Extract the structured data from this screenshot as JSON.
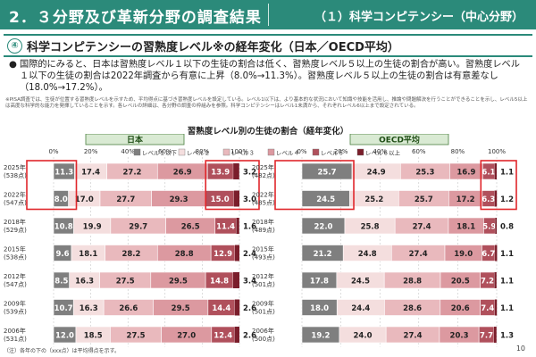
{
  "header": {
    "title": "2．３分野及び革新分野の調査結果",
    "subtitle": "（１）科学コンピテンシー（中心分野）"
  },
  "section": {
    "number": "④",
    "title": "科学コンピテンシーの習熟度レベル※の経年変化（日本／OECD平均）"
  },
  "bullet": {
    "mark": "●",
    "text": "国際的にみると、日本は習熟度レベル１以下の生徒の割合は低く、習熟度レベル５以上の生徒の割合が高い。習熟度レベル１以下の生徒の割合は2022年調査から有意に上昇（8.0%→11.3%）。習熟度レベル５以上の生徒の割合は有意差なし（18.0%→17.2%）。"
  },
  "note": "※PISA調査では、生徒が位置する習熟度レベルを示すため、平均得点に基づき習熟度レベルを設定している。レベル1以下は、より基本的な状況において知識や技能を活用し、推論や問題解決を行うことができることを示し、レベル5以上は高度な科学的な能力を発揮していることを示す。各レベルの詳細は、各分野の調査の枠組みを参照。科学コンピテンシーはレベル1未満から、それぞれレベル6以上まで設定されている。",
  "footnote": "（注）各年の下の（xxx点）は平均得点を示す。",
  "page_number": "10",
  "colors": {
    "header_bg": "#2b8a7a",
    "highlight_box": "#e0262b",
    "level_colors": [
      "#7f7f7f",
      "#f4dede",
      "#e9b9bd",
      "#dc99a0",
      "#b0505c",
      "#7a1e2b"
    ]
  },
  "chart_data": [
    {
      "type": "bar",
      "stacked": true,
      "orientation": "horizontal",
      "title": "習熟度レベル別の生徒の割合（経年変化）",
      "panel": "日本",
      "xlim": [
        0,
        100
      ],
      "xticks": [
        "0%",
        "20%",
        "40%",
        "60%",
        "80%",
        "100%"
      ],
      "categories": [
        {
          "year": "2025年",
          "score": "(538点)"
        },
        {
          "year": "2022年",
          "score": "(547点)"
        },
        {
          "year": "2018年",
          "score": "(529点)"
        },
        {
          "year": "2015年",
          "score": "(538点)"
        },
        {
          "year": "2012年",
          "score": "(547点)"
        },
        {
          "year": "2009年",
          "score": "(539点)"
        },
        {
          "year": "2006年",
          "score": "(531点)"
        }
      ],
      "series": [
        {
          "name": "レベル１以下",
          "values": [
            11.3,
            8.0,
            10.8,
            9.6,
            8.5,
            10.7,
            12.0
          ]
        },
        {
          "name": "レベル２",
          "values": [
            17.4,
            17.0,
            19.9,
            18.1,
            16.3,
            16.3,
            18.5
          ]
        },
        {
          "name": "レベル３",
          "values": [
            27.2,
            27.7,
            29.7,
            28.2,
            27.5,
            26.6,
            27.5
          ]
        },
        {
          "name": "レベル４",
          "values": [
            26.9,
            29.3,
            26.5,
            28.8,
            29.5,
            29.5,
            27.0
          ]
        },
        {
          "name": "レベル５",
          "values": [
            13.9,
            15.0,
            11.4,
            12.9,
            14.8,
            14.4,
            12.4
          ]
        },
        {
          "name": "レベル６以上",
          "values": [
            3.2,
            3.0,
            1.6,
            2.4,
            3.4,
            2.6,
            2.6
          ]
        }
      ],
      "highlight": {
        "level1_rows": [
          0,
          1
        ],
        "level5_rows": [
          0,
          1
        ]
      }
    },
    {
      "type": "bar",
      "stacked": true,
      "orientation": "horizontal",
      "panel": "OECD平均",
      "xlim": [
        0,
        100
      ],
      "xticks": [
        "0%",
        "20%",
        "40%",
        "60%",
        "80%",
        "100%"
      ],
      "categories": [
        {
          "year": "2025年",
          "score": "(482点)"
        },
        {
          "year": "2022年",
          "score": "(485点)"
        },
        {
          "year": "2018年",
          "score": "(489点)"
        },
        {
          "year": "2015年",
          "score": "(493点)"
        },
        {
          "year": "2012年",
          "score": "(501点)"
        },
        {
          "year": "2009年",
          "score": "(501点)"
        },
        {
          "year": "2006年",
          "score": "(500点)"
        }
      ],
      "series": [
        {
          "name": "レベル１以下",
          "values": [
            25.7,
            24.5,
            22.0,
            21.2,
            17.8,
            18.0,
            19.2
          ]
        },
        {
          "name": "レベル２",
          "values": [
            24.9,
            25.2,
            25.8,
            24.8,
            24.5,
            24.4,
            24.0
          ]
        },
        {
          "name": "レベル３",
          "values": [
            25.3,
            25.7,
            27.4,
            27.4,
            28.8,
            28.6,
            27.4
          ]
        },
        {
          "name": "レベル４",
          "values": [
            16.9,
            17.2,
            18.1,
            19.0,
            20.5,
            20.6,
            20.3
          ]
        },
        {
          "name": "レベル５",
          "values": [
            6.1,
            6.3,
            5.9,
            6.7,
            7.2,
            7.4,
            7.7
          ]
        },
        {
          "name": "レベル６以上",
          "values": [
            1.1,
            1.2,
            0.8,
            1.1,
            1.1,
            1.1,
            1.3
          ]
        }
      ],
      "highlight": {
        "level1_rows": [
          0,
          1
        ],
        "level5_rows": [
          0,
          1
        ]
      }
    }
  ]
}
